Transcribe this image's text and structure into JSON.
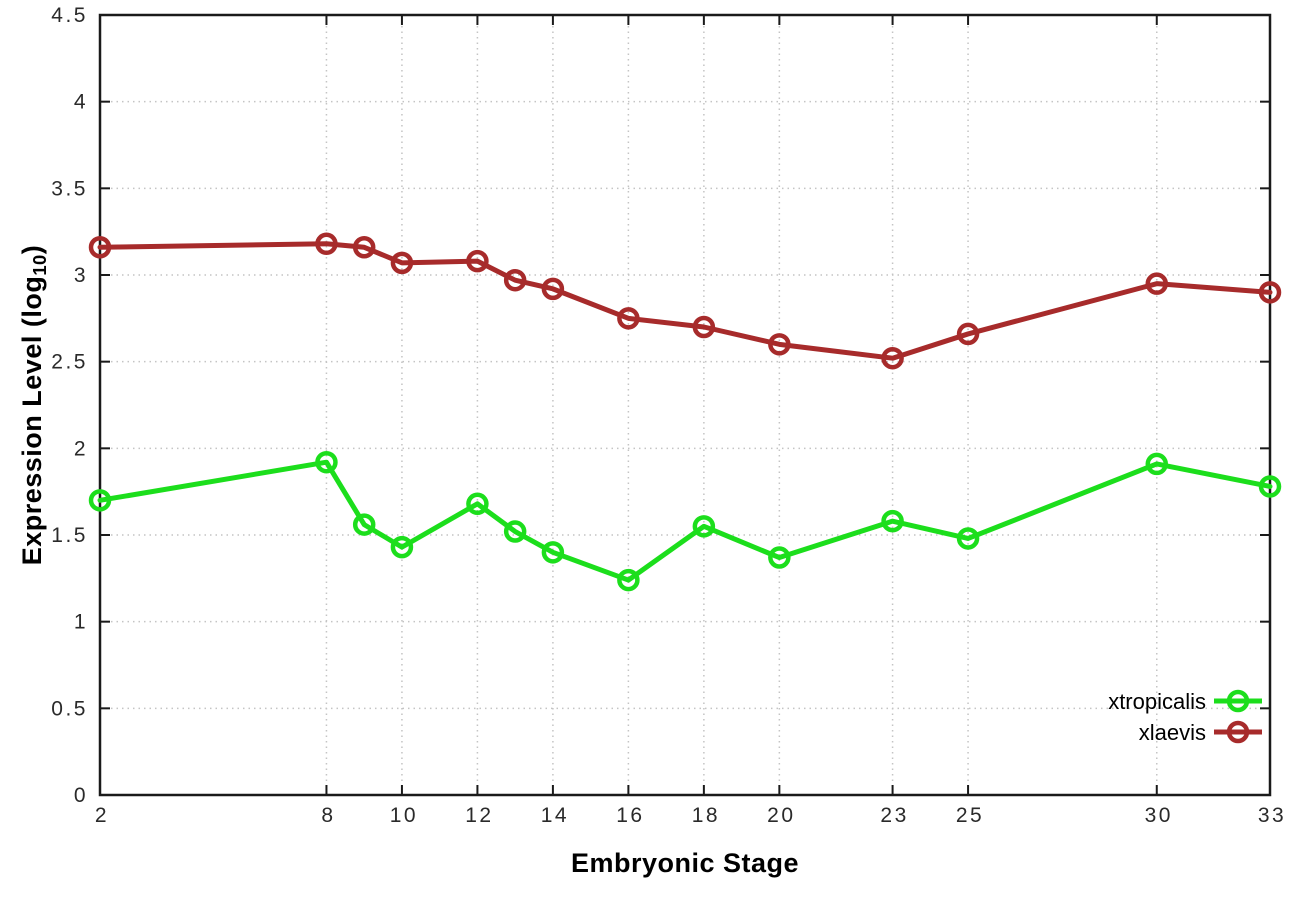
{
  "chart_data": {
    "type": "line",
    "title": "",
    "xlabel": "Embryonic Stage",
    "ylabel": "Expression Level (log10)",
    "ylabel_parts": {
      "main": "Expression Level (log",
      "sub": "10",
      "close": ")"
    },
    "x": [
      2,
      8,
      9,
      10,
      12,
      13,
      14,
      16,
      18,
      20,
      23,
      25,
      30,
      33
    ],
    "x_tick_values": [
      2,
      8,
      10,
      12,
      14,
      16,
      18,
      20,
      23,
      25,
      30,
      33
    ],
    "x_tick_labels": [
      "2",
      "8",
      "10",
      "12",
      "14",
      "16",
      "18",
      "20",
      "23",
      "25",
      "30",
      "33"
    ],
    "xlim": [
      2,
      33
    ],
    "ylim": [
      0,
      4.5
    ],
    "y_tick_values": [
      0,
      0.5,
      1,
      1.5,
      2,
      2.5,
      3,
      3.5,
      4,
      4.5
    ],
    "y_tick_labels": [
      "0",
      "0.5",
      "1",
      "1.5",
      "2",
      "2.5",
      "3",
      "3.5",
      "4",
      "4.5"
    ],
    "grid": true,
    "legend_position": "bottom-right-inside",
    "series": [
      {
        "name": "xtropicalis",
        "color": "#1CDE1C",
        "values": [
          1.7,
          1.92,
          1.56,
          1.43,
          1.68,
          1.52,
          1.4,
          1.24,
          1.55,
          1.37,
          1.58,
          1.48,
          1.91,
          1.78
        ]
      },
      {
        "name": "xlaevis",
        "color": "#A72B2B",
        "values": [
          3.16,
          3.18,
          3.16,
          3.07,
          3.08,
          2.97,
          2.92,
          2.75,
          2.7,
          2.6,
          2.52,
          2.66,
          2.95,
          2.9
        ]
      }
    ],
    "colors": {
      "axis": "#1a1a1a",
      "grid": "#c4c4c4",
      "tick_label": "#2a2a2a",
      "legend_text": "#000000",
      "background": "#ffffff"
    }
  }
}
